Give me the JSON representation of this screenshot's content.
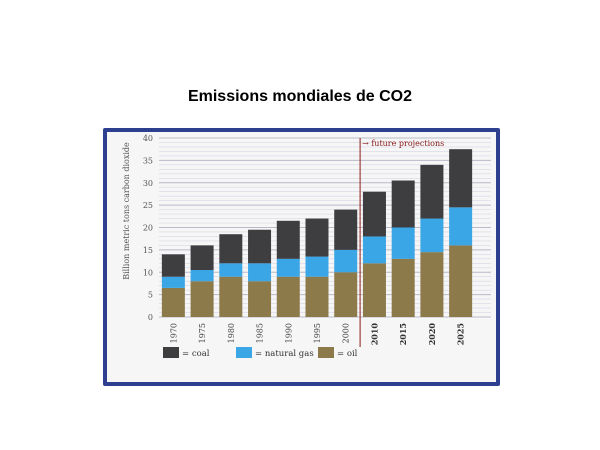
{
  "title": "Emissions mondiales de CO2",
  "colors": {
    "frame": "#2f3f8f",
    "plot_bg": "#f6f6f6",
    "coal": "#3e3e40",
    "natural_gas": "#3aa6e6",
    "oil": "#8c7a4a",
    "projection_line": "#8b1a1a"
  },
  "chart_data": {
    "type": "bar",
    "stacked": true,
    "categories": [
      "1970",
      "1975",
      "1980",
      "1985",
      "1990",
      "1995",
      "2000",
      "2010",
      "2015",
      "2020",
      "2025"
    ],
    "series": [
      {
        "key": "oil",
        "name": "= oil",
        "values": [
          6.5,
          8,
          9,
          8,
          9,
          9,
          10,
          12,
          13,
          14.5,
          16
        ]
      },
      {
        "key": "natural_gas",
        "name": "= natural gas",
        "values": [
          2.5,
          2.5,
          3,
          4,
          4,
          4.5,
          5,
          6,
          7,
          7.5,
          8.5
        ]
      },
      {
        "key": "coal",
        "name": "= coal",
        "values": [
          5,
          5.5,
          6.5,
          7.5,
          8.5,
          8.5,
          9,
          10,
          10.5,
          12,
          13
        ]
      }
    ],
    "legend_order": [
      "coal",
      "natural_gas",
      "oil"
    ],
    "ylabel": "Billion metric tons carbon dioxide",
    "ylim": [
      0,
      40
    ],
    "yticks": [
      0,
      5,
      10,
      15,
      20,
      25,
      30,
      35,
      40
    ],
    "grid": true,
    "legend_position": "bottom",
    "annotation": {
      "text": "→ future projections",
      "starts_at_category": "2010"
    }
  }
}
